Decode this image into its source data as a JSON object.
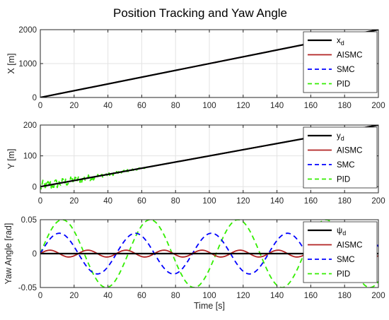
{
  "title": "Position Tracking and Yaw Angle",
  "colors": {
    "ref": "#000000",
    "aismc": "#b22222",
    "smc": "#0000ff",
    "pid": "#33ee00",
    "grid": "#e3e3e3",
    "axis": "#262626"
  },
  "chart_data": [
    {
      "type": "line",
      "xlabel": "",
      "ylabel": "X [m]",
      "xlim": [
        0,
        200
      ],
      "ylim": [
        0,
        2000
      ],
      "xticks": [
        "0",
        "20",
        "40",
        "60",
        "80",
        "100",
        "120",
        "140",
        "160",
        "180",
        "200"
      ],
      "yticks": [
        "0",
        "1000",
        "2000"
      ],
      "grid": true,
      "legend_position": "top-right",
      "series": [
        {
          "key": "ref",
          "name": "x",
          "name_sub": "d",
          "x": [
            0,
            200
          ],
          "y": [
            0,
            2000
          ]
        },
        {
          "key": "aismc",
          "name": "AISMC",
          "x": [
            0,
            200
          ],
          "y": [
            0,
            2000
          ]
        },
        {
          "key": "smc",
          "name": "SMC",
          "x": [
            0,
            200
          ],
          "y": [
            0,
            2000
          ]
        },
        {
          "key": "pid",
          "name": "PID",
          "x": [
            0,
            200
          ],
          "y": [
            0,
            2000
          ]
        }
      ]
    },
    {
      "type": "line",
      "xlabel": "",
      "ylabel": "Y [m]",
      "xlim": [
        0,
        200
      ],
      "ylim": [
        -20,
        200
      ],
      "xticks": [
        "0",
        "20",
        "40",
        "60",
        "80",
        "100",
        "120",
        "140",
        "160",
        "180",
        "200"
      ],
      "yticks": [
        "0",
        "100",
        "200"
      ],
      "grid": true,
      "legend_position": "top-right",
      "series": [
        {
          "key": "ref",
          "name": "y",
          "name_sub": "d",
          "x": [
            0,
            200
          ],
          "y": [
            0,
            200
          ]
        },
        {
          "key": "aismc",
          "name": "AISMC",
          "x": [
            0,
            200
          ],
          "y": [
            0,
            200
          ]
        },
        {
          "key": "smc",
          "name": "SMC",
          "x": [
            0,
            200
          ],
          "y": [
            0,
            200
          ]
        },
        {
          "key": "pid",
          "name": "PID",
          "x": [
            0,
            200
          ],
          "y": [
            0,
            200
          ],
          "noise_amplitude_early": [
            20,
            0
          ]
        }
      ]
    },
    {
      "type": "line",
      "xlabel": "Time [s]",
      "ylabel": "Yaw Angle [rad]",
      "xlim": [
        0,
        200
      ],
      "ylim": [
        -0.05,
        0.05
      ],
      "xticks": [
        "0",
        "20",
        "40",
        "60",
        "80",
        "100",
        "120",
        "140",
        "160",
        "180",
        "200"
      ],
      "yticks": [
        "-0.05",
        "0",
        "0.05"
      ],
      "grid": true,
      "legend_position": "top-right",
      "series": [
        {
          "key": "ref",
          "name": "ψ",
          "name_sub": "d",
          "y_const": 0
        },
        {
          "key": "aismc",
          "name": "AISMC",
          "amplitude": 0.005,
          "period": 22.5
        },
        {
          "key": "smc",
          "name": "SMC",
          "amplitude": 0.03,
          "period": 45
        },
        {
          "key": "pid",
          "name": "PID",
          "amplitude": 0.05,
          "period": 52
        }
      ]
    }
  ]
}
